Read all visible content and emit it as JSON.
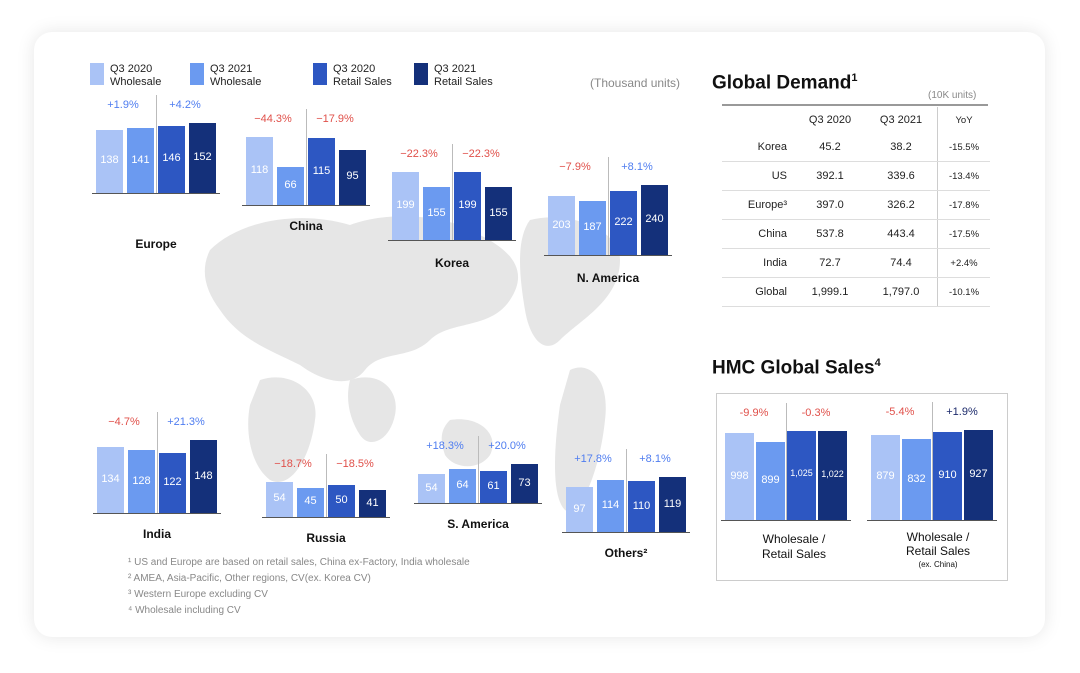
{
  "legend": [
    {
      "label_line1": "Q3 2020",
      "label_line2": "Wholesale",
      "color": "#aac3f6"
    },
    {
      "label_line1": "Q3 2021",
      "label_line2": "Wholesale",
      "color": "#6b9af0"
    },
    {
      "label_line1": "Q3 2020",
      "label_line2": "Retail Sales",
      "color": "#2d57c2"
    },
    {
      "label_line1": "Q3 2021",
      "label_line2": "Retail Sales",
      "color": "#14307a"
    }
  ],
  "unit_label": "(Thousand units)",
  "chart_data": [
    {
      "type": "bar",
      "name": "Europe",
      "categories": [
        "Q3 2020 Wholesale",
        "Q3 2021 Wholesale",
        "Q3 2020 Retail Sales",
        "Q3 2021 Retail Sales"
      ],
      "values": [
        138,
        141,
        146,
        152
      ],
      "growth_labels": [
        "+1.9%",
        "+4.2%"
      ]
    },
    {
      "type": "bar",
      "name": "China",
      "categories": [
        "Q3 2020 Wholesale",
        "Q3 2021 Wholesale",
        "Q3 2020 Retail Sales",
        "Q3 2021 Retail Sales"
      ],
      "values": [
        118,
        66,
        115,
        95
      ],
      "growth_labels": [
        "−44.3%",
        "−17.9%"
      ]
    },
    {
      "type": "bar",
      "name": "Korea",
      "categories": [
        "Q3 2020 Wholesale",
        "Q3 2021 Wholesale",
        "Q3 2020 Retail Sales",
        "Q3 2021 Retail Sales"
      ],
      "values": [
        199,
        155,
        199,
        155
      ],
      "growth_labels": [
        "−22.3%",
        "−22.3%"
      ]
    },
    {
      "type": "bar",
      "name": "N. America",
      "categories": [
        "Q3 2020 Wholesale",
        "Q3 2021 Wholesale",
        "Q3 2020 Retail Sales",
        "Q3 2021 Retail Sales"
      ],
      "values": [
        203,
        187,
        222,
        240
      ],
      "growth_labels": [
        "−7.9%",
        "+8.1%"
      ]
    },
    {
      "type": "bar",
      "name": "India",
      "categories": [
        "Q3 2020 Wholesale",
        "Q3 2021 Wholesale",
        "Q3 2020 Retail Sales",
        "Q3 2021 Retail Sales"
      ],
      "values": [
        134,
        128,
        122,
        148
      ],
      "growth_labels": [
        "−4.7%",
        "+21.3%"
      ]
    },
    {
      "type": "bar",
      "name": "Russia",
      "categories": [
        "Q3 2020 Wholesale",
        "Q3 2021 Wholesale",
        "Q3 2020 Retail Sales",
        "Q3 2021 Retail Sales"
      ],
      "values": [
        54,
        45,
        50,
        41
      ],
      "growth_labels": [
        "−18.7%",
        "−18.5%"
      ]
    },
    {
      "type": "bar",
      "name": "S. America",
      "categories": [
        "Q3 2020 Wholesale",
        "Q3 2021 Wholesale",
        "Q3 2020 Retail Sales",
        "Q3 2021 Retail Sales"
      ],
      "values": [
        54,
        64,
        61,
        73
      ],
      "growth_labels": [
        "+18.3%",
        "+20.0%"
      ]
    },
    {
      "type": "bar",
      "name": "Others²",
      "categories": [
        "Q3 2020 Wholesale",
        "Q3 2021 Wholesale",
        "Q3 2020 Retail Sales",
        "Q3 2021 Retail Sales"
      ],
      "values": [
        97,
        114,
        110,
        119
      ],
      "growth_labels": [
        "+17.8%",
        "+8.1%"
      ]
    },
    {
      "type": "table",
      "name": "Global Demand",
      "columns": [
        "",
        "Q3 2020",
        "Q3 2021",
        "YoY"
      ],
      "rows": [
        [
          "Korea",
          "45.2",
          "38.2",
          "-15.5%"
        ],
        [
          "US",
          "392.1",
          "339.6",
          "-13.4%"
        ],
        [
          "Europe³",
          "397.0",
          "326.2",
          "-17.8%"
        ],
        [
          "China",
          "537.8",
          "443.4",
          "-17.5%"
        ],
        [
          "India",
          "72.7",
          "74.4",
          "+2.4%"
        ],
        [
          "Global",
          "1,999.1",
          "1,797.0",
          "-10.1%"
        ]
      ]
    },
    {
      "type": "bar",
      "name": "Wholesale / Retail Sales",
      "categories": [
        "Q3 2020 Wholesale",
        "Q3 2021 Wholesale",
        "Q3 2020 Retail Sales",
        "Q3 2021 Retail Sales"
      ],
      "values": [
        998,
        899,
        1025,
        1022
      ],
      "value_labels": [
        "998",
        "899",
        "1,025",
        "1,022"
      ],
      "growth_labels": [
        "-9.9%",
        "-0.3%"
      ]
    },
    {
      "type": "bar",
      "name": "Wholesale / Retail Sales (ex. China)",
      "categories": [
        "Q3 2020 Wholesale",
        "Q3 2021 Wholesale",
        "Q3 2020 Retail Sales",
        "Q3 2021 Retail Sales"
      ],
      "values": [
        879,
        832,
        910,
        927
      ],
      "value_labels": [
        "879",
        "832",
        "910",
        "927"
      ],
      "growth_labels": [
        "-5.4%",
        "+1.9%"
      ]
    }
  ],
  "global_demand": {
    "title": "Global Demand",
    "title_sup": "1",
    "unit": "(10K units)"
  },
  "hmc_sales": {
    "title": "HMC Global Sales",
    "title_sup": "4",
    "label1_line1": "Wholesale /",
    "label1_line2": "Retail Sales",
    "label2_line1": "Wholesale /",
    "label2_line2": "Retail Sales",
    "label2_line3": "(ex. China)"
  },
  "footnotes": [
    "¹ US and Europe are based on retail sales, China ex-Factory, India wholesale",
    "² AMEA, Asia-Pacific, Other regions, CV(ex. Korea CV)",
    "³ Western Europe excluding CV",
    "⁴ Wholesale including CV"
  ]
}
